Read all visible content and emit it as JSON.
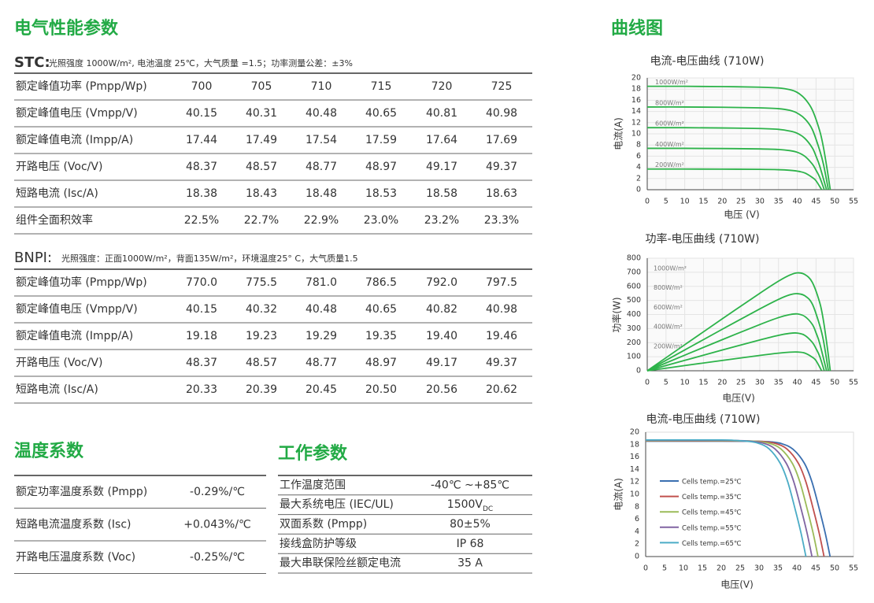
{
  "electrical": {
    "title": "电气性能参数",
    "stc": {
      "label": "STC:",
      "note": "光照强度 1000W/m², 电池温度 25℃，大气质量 =1.5；功率测量公差：±3%",
      "rows": [
        [
          "额定峰值功率 (Pmpp/Wp)",
          "700",
          "705",
          "710",
          "715",
          "720",
          "725"
        ],
        [
          "额定峰值电压 (Vmpp/V)",
          "40.15",
          "40.31",
          "40.48",
          "40.65",
          "40.81",
          "40.98"
        ],
        [
          "额定峰值电流 (Impp/A)",
          "17.44",
          "17.49",
          "17.54",
          "17.59",
          "17.64",
          "17.69"
        ],
        [
          "开路电压 (Voc/V)",
          "48.37",
          "48.57",
          "48.77",
          "48.97",
          "49.17",
          "49.37"
        ],
        [
          "短路电流 (Isc/A)",
          "18.38",
          "18.43",
          "18.48",
          "18.53",
          "18.58",
          "18.63"
        ],
        [
          "组件全面积效率",
          "22.5%",
          "22.7%",
          "22.9%",
          "23.0%",
          "23.2%",
          "23.3%"
        ]
      ]
    },
    "bnpi": {
      "label": "BNPI:",
      "note": "光照强度：正面1000W/m²，背面135W/m²，环境温度25° C，大气质量1.5",
      "rows": [
        [
          "额定峰值功率 (Pmpp/Wp)",
          "770.0",
          "775.5",
          "781.0",
          "786.5",
          "792.0",
          "797.5"
        ],
        [
          "额定峰值电压 (Vmpp/V)",
          "40.15",
          "40.32",
          "40.48",
          "40.65",
          "40.82",
          "40.98"
        ],
        [
          "额定峰值电流 (Impp/A)",
          "19.18",
          "19.23",
          "19.29",
          "19.35",
          "19.40",
          "19.46"
        ],
        [
          "开路电压 (Voc/V)",
          "48.37",
          "48.57",
          "48.77",
          "48.97",
          "49.17",
          "49.37"
        ],
        [
          "短路电流 (Isc/A)",
          "20.33",
          "20.39",
          "20.45",
          "20.50",
          "20.56",
          "20.62"
        ]
      ]
    }
  },
  "temperature": {
    "title": "温度系数",
    "rows": [
      [
        "额定功率温度系数 (Pmpp)",
        "-0.29%/℃"
      ],
      [
        "短路电流温度系数 (Isc)",
        "+0.043%/℃"
      ],
      [
        "开路电压温度系数 (Voc)",
        "-0.25%/℃"
      ]
    ]
  },
  "operating": {
    "title": "工作参数",
    "rows": [
      {
        "label": "工作温度范围",
        "value": "-40℃ ~+85℃"
      },
      {
        "label": "最大系统电压 (IEC/UL)",
        "value": "1500V",
        "sub": "DC"
      },
      {
        "label": "双面系数 (Pmpp)",
        "value": "80±5%"
      },
      {
        "label": "接线盒防护等级",
        "value": "IP 68"
      },
      {
        "label": "最大串联保险丝额定电流",
        "value": "35 A"
      }
    ]
  },
  "curves_title": "曲线图",
  "chart_data": [
    {
      "type": "line",
      "title": "电流-电压曲线 (710W)",
      "x_label": "电压 (V)",
      "y_label": "电流(A)",
      "xlim": [
        0,
        55
      ],
      "ylim": [
        0,
        20
      ],
      "xticks": [
        0,
        5,
        10,
        15,
        20,
        25,
        30,
        35,
        40,
        45,
        50,
        55
      ],
      "yticks": [
        0,
        2,
        4,
        6,
        8,
        10,
        12,
        14,
        16,
        18,
        20
      ],
      "grid": true,
      "legend": "on-curves",
      "series": [
        {
          "name": "1000W/m²",
          "color": "#2db34a",
          "x": [
            0,
            10,
            20,
            30,
            35,
            38,
            40,
            42,
            44,
            46,
            47,
            48,
            48.8
          ],
          "values": [
            18.5,
            18.5,
            18.45,
            18.35,
            18.2,
            17.9,
            17.4,
            16.3,
            14.3,
            10.5,
            7.5,
            3.5,
            0
          ]
        },
        {
          "name": "800W/m²",
          "color": "#2db34a",
          "x": [
            0,
            10,
            20,
            30,
            35,
            38,
            40,
            42,
            44,
            46,
            47,
            48.3
          ],
          "values": [
            14.8,
            14.8,
            14.75,
            14.65,
            14.5,
            14.2,
            13.7,
            12.7,
            10.8,
            7,
            4.5,
            0
          ]
        },
        {
          "name": "600W/m²",
          "color": "#2db34a",
          "x": [
            0,
            10,
            20,
            30,
            35,
            38,
            40,
            42,
            44,
            45,
            46,
            47.8
          ],
          "values": [
            11.1,
            11.1,
            11.05,
            10.95,
            10.8,
            10.5,
            10.1,
            9.2,
            7.5,
            6,
            4.2,
            0
          ]
        },
        {
          "name": "400W/m²",
          "color": "#2db34a",
          "x": [
            0,
            10,
            20,
            30,
            35,
            38,
            40,
            42,
            44,
            45,
            46,
            47.2
          ],
          "values": [
            7.4,
            7.4,
            7.37,
            7.3,
            7.2,
            7,
            6.7,
            6,
            4.6,
            3.5,
            2.2,
            0
          ]
        },
        {
          "name": "200W/m²",
          "color": "#2db34a",
          "x": [
            0,
            10,
            20,
            30,
            35,
            38,
            40,
            42,
            44,
            45,
            46.5
          ],
          "values": [
            3.7,
            3.7,
            3.68,
            3.64,
            3.58,
            3.48,
            3.33,
            3,
            2.2,
            1.6,
            0
          ]
        }
      ]
    },
    {
      "type": "line",
      "title": "功率-电压曲线 (710W)",
      "x_label": "电压(V)",
      "y_label": "功率(W)",
      "xlim": [
        0,
        55
      ],
      "ylim": [
        0,
        800
      ],
      "xticks": [
        0,
        5,
        10,
        15,
        20,
        25,
        30,
        35,
        40,
        45,
        50,
        55
      ],
      "yticks": [
        0,
        100,
        200,
        300,
        400,
        500,
        600,
        700,
        800
      ],
      "grid": true,
      "legend": "top-left",
      "series": [
        {
          "name": "1000W/m²",
          "color": "#2db34a",
          "x": [
            0,
            10,
            20,
            30,
            35,
            38,
            40,
            42,
            44,
            46,
            47,
            48,
            48.8
          ],
          "values": [
            0,
            185,
            369,
            550.5,
            637,
            680.2,
            696,
            684.6,
            629.2,
            483,
            352.5,
            168,
            0
          ]
        },
        {
          "name": "800W/m²",
          "color": "#2db34a",
          "x": [
            0,
            10,
            20,
            30,
            35,
            38,
            40,
            42,
            44,
            46,
            47,
            48.3
          ],
          "values": [
            0,
            148,
            295,
            439.5,
            507.5,
            539.6,
            548,
            533.4,
            475.2,
            322,
            211.5,
            0
          ]
        },
        {
          "name": "600W/m²",
          "color": "#2db34a",
          "x": [
            0,
            10,
            20,
            30,
            35,
            38,
            40,
            42,
            44,
            45,
            46,
            47.8
          ],
          "values": [
            0,
            111,
            221,
            328.5,
            378,
            399,
            404,
            386.4,
            330,
            270,
            193.2,
            0
          ]
        },
        {
          "name": "400W/m²",
          "color": "#2db34a",
          "x": [
            0,
            10,
            20,
            30,
            35,
            38,
            40,
            42,
            44,
            45,
            46,
            47.2
          ],
          "values": [
            0,
            74,
            147.4,
            219,
            252,
            266,
            268,
            252,
            202.4,
            157.5,
            101.2,
            0
          ]
        },
        {
          "name": "200W/m²",
          "color": "#2db34a",
          "x": [
            0,
            10,
            20,
            30,
            35,
            38,
            40,
            42,
            44,
            45,
            46.5
          ],
          "values": [
            0,
            37,
            73.6,
            109.2,
            125.3,
            132.2,
            133.2,
            126,
            96.8,
            72,
            0
          ]
        }
      ]
    },
    {
      "type": "line",
      "title": "电流-电压曲线 (710W)",
      "x_label": "电压(V)",
      "y_label": "电流(A)",
      "xlim": [
        0,
        55
      ],
      "ylim": [
        0,
        20
      ],
      "xticks": [
        0,
        5,
        10,
        15,
        20,
        25,
        30,
        35,
        40,
        45,
        50,
        55
      ],
      "yticks": [
        0,
        2,
        4,
        6,
        8,
        10,
        12,
        14,
        16,
        18,
        20
      ],
      "grid": false,
      "legend": "lower-left",
      "series": [
        {
          "name": "Cells temp.=25℃",
          "color": "#3a6fb0",
          "x": [
            0,
            20,
            30,
            33,
            36,
            39,
            42,
            44,
            46,
            47.5,
            48.8
          ],
          "values": [
            18.55,
            18.55,
            18.53,
            18.45,
            18.15,
            17.25,
            15,
            12,
            7.5,
            3.8,
            0
          ]
        },
        {
          "name": "Cells temp.=35℃",
          "color": "#c0504d",
          "x": [
            0,
            20,
            28.4,
            31.4,
            34.4,
            37.4,
            40.4,
            42.4,
            44.4,
            45.9,
            47.2
          ],
          "values": [
            18.6,
            18.6,
            18.56,
            18.48,
            18.18,
            17.28,
            15,
            12,
            7.5,
            3.8,
            0
          ]
        },
        {
          "name": "Cells temp.=45℃",
          "color": "#9bbb59",
          "x": [
            0,
            20,
            26.8,
            29.8,
            32.8,
            35.8,
            38.8,
            40.8,
            42.8,
            44.3,
            45.6
          ],
          "values": [
            18.65,
            18.65,
            18.6,
            18.5,
            18.2,
            17.3,
            15,
            12,
            7.5,
            3.8,
            0
          ]
        },
        {
          "name": "Cells temp.=55℃",
          "color": "#8064a2",
          "x": [
            0,
            20,
            25.2,
            28.2,
            31.2,
            34.2,
            37.2,
            39.2,
            41.2,
            42.7,
            44
          ],
          "values": [
            18.7,
            18.7,
            18.64,
            18.52,
            18.22,
            17.32,
            15,
            12,
            7.5,
            3.8,
            0
          ]
        },
        {
          "name": "Cells temp.=65℃",
          "color": "#4bacc6",
          "x": [
            0,
            20,
            23.6,
            26.6,
            29.6,
            32.6,
            35.6,
            37.6,
            39.6,
            41.1,
            42.4
          ],
          "values": [
            18.75,
            18.75,
            18.68,
            18.55,
            18.25,
            17.35,
            15,
            12,
            7.5,
            3.8,
            0
          ]
        }
      ]
    }
  ]
}
